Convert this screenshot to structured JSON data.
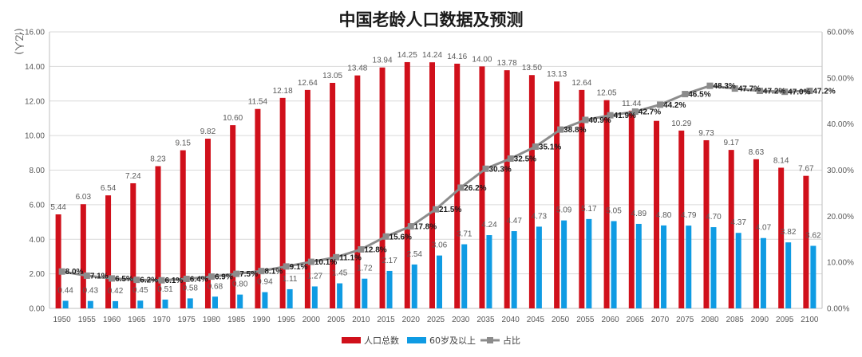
{
  "chart_data": {
    "type": "bar",
    "title": "中国老龄人口数据及预测",
    "ylabel": "(亿人)",
    "ylim": [
      0,
      16
    ],
    "y_ticks": [
      "0.00",
      "2.00",
      "4.00",
      "6.00",
      "8.00",
      "10.00",
      "12.00",
      "14.00",
      "16.00"
    ],
    "y2lim": [
      0,
      60
    ],
    "y2_ticks": [
      "0.00%",
      "10.00%",
      "20.00%",
      "30.00%",
      "40.00%",
      "50.00%",
      "60.00%"
    ],
    "grid": true,
    "legend_position": "bottom",
    "categories": [
      "1950",
      "1955",
      "1960",
      "1965",
      "1970",
      "1975",
      "1980",
      "1985",
      "1990",
      "1995",
      "2000",
      "2005",
      "2010",
      "2015",
      "2020",
      "2025",
      "2030",
      "2035",
      "2040",
      "2045",
      "2050",
      "2055",
      "2060",
      "2065",
      "2070",
      "2075",
      "2080",
      "2085",
      "2090",
      "2095",
      "2100"
    ],
    "series": [
      {
        "name": "人口总数",
        "type": "bar",
        "color": "#d0101b",
        "values": [
          5.44,
          6.03,
          6.54,
          7.24,
          8.23,
          9.15,
          9.82,
          10.6,
          11.54,
          12.18,
          12.64,
          13.05,
          13.48,
          13.94,
          14.25,
          14.24,
          14.16,
          14.0,
          13.78,
          13.5,
          13.13,
          12.64,
          12.05,
          11.44,
          10.85,
          10.29,
          9.73,
          9.17,
          8.63,
          8.14,
          7.67
        ],
        "labels": [
          "5.44",
          "6.03",
          "6.54",
          "7.24",
          "8.23",
          "9.15",
          "9.82",
          "10.60",
          "11.54",
          "12.18",
          "12.64",
          "13.05",
          "13.48",
          "13.94",
          "14.25",
          "14.24",
          "14.16",
          "14.00",
          "13.78",
          "13.50",
          "13.13",
          "12.64",
          "12.05",
          "11.44",
          "",
          "10.29",
          "9.73",
          "9.17",
          "8.63",
          "8.14",
          "7.67"
        ]
      },
      {
        "name": "60岁及以上",
        "type": "bar",
        "color": "#0f9be3",
        "values": [
          0.44,
          0.43,
          0.42,
          0.45,
          0.51,
          0.58,
          0.68,
          0.8,
          0.94,
          1.11,
          1.27,
          1.45,
          1.72,
          2.17,
          2.54,
          3.06,
          3.71,
          4.24,
          4.47,
          4.73,
          5.09,
          5.17,
          5.05,
          4.89,
          4.8,
          4.79,
          4.7,
          4.37,
          4.07,
          3.82,
          3.62
        ],
        "labels": [
          "0.44",
          "0.43",
          "0.42",
          "0.45",
          "0.51",
          "0.58",
          "0.68",
          "0.80",
          "0.94",
          "1.11",
          "1.27",
          "1.45",
          "1.72",
          "2.17",
          "2.54",
          "3.06",
          "3.71",
          "4.24",
          "4.47",
          "4.73",
          "5.09",
          "5.17",
          "5.05",
          "4.89",
          "4.80",
          "4.79",
          "4.70",
          "4.37",
          "4.07",
          "3.82",
          "3.62"
        ]
      },
      {
        "name": "占比",
        "type": "line",
        "axis": "right",
        "color": "#8c8c8c",
        "values": [
          8.0,
          7.1,
          6.5,
          6.2,
          6.1,
          6.4,
          6.9,
          7.5,
          8.1,
          9.1,
          10.1,
          11.1,
          12.8,
          15.6,
          17.8,
          21.5,
          26.2,
          30.3,
          32.5,
          35.1,
          38.8,
          40.9,
          41.9,
          42.7,
          44.2,
          46.5,
          48.3,
          47.7,
          47.2,
          47.0,
          47.2
        ],
        "labels": [
          "8.0%",
          "7.1%",
          "6.5%",
          "6.2%",
          "6.1%",
          "6.4%",
          "6.9%",
          "7.5%",
          "8.1%",
          "9.1%",
          "10.1%",
          "11.1%",
          "12.8%",
          "15.6%",
          "17.8%",
          "21.5%",
          "26.2%",
          "30.3%",
          "32.5%",
          "35.1%",
          "38.8%",
          "40.9%",
          "41.9%",
          "42.7%",
          "44.2%",
          "46.5%",
          "48.3%",
          "47.7%",
          "47.2%",
          "47.0%",
          "47.2%"
        ]
      }
    ]
  }
}
